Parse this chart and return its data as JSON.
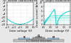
{
  "bg_color": "#e8e8e8",
  "panel_bg": "#ffffff",
  "curve_color": "#00cccc",
  "grid_color": "#cccccc",
  "left_title": "(a) Transfer characteristics",
  "right_title": "(b) Output characteristics",
  "bottom_title": "(c) Device structure",
  "left_xlabel": "Gate voltage (V)",
  "left_ylabel": "Drain current (A/m)",
  "right_xlabel": "Drain voltage (V)",
  "right_ylabel": "Drain current (A/m)",
  "font_size": 2.8,
  "title_font_size": 2.6,
  "tick_font_size": 2.2,
  "left_xlim": [
    -1.5,
    0.5
  ],
  "left_ylim": [
    -14,
    -2
  ],
  "right_xlim": [
    0,
    2.0
  ],
  "right_ylim": [
    0,
    10
  ],
  "left_xticks": [
    -1.5,
    -1.0,
    -0.5,
    0.0,
    0.5
  ],
  "left_yticks": [
    -14,
    -12,
    -10,
    -8,
    -6,
    -4,
    -2
  ],
  "right_xticks": [
    0.0,
    0.5,
    1.0,
    1.5,
    2.0
  ],
  "right_yticks": [
    0,
    2,
    4,
    6,
    8,
    10
  ],
  "device_colors": {
    "substrate": "#c8c8c8",
    "oxide": "#e0e8f0",
    "gate": "#b0b0b0",
    "source_drain": "#a0c8e0",
    "gate_top": "#909090",
    "outline": "#404040"
  }
}
